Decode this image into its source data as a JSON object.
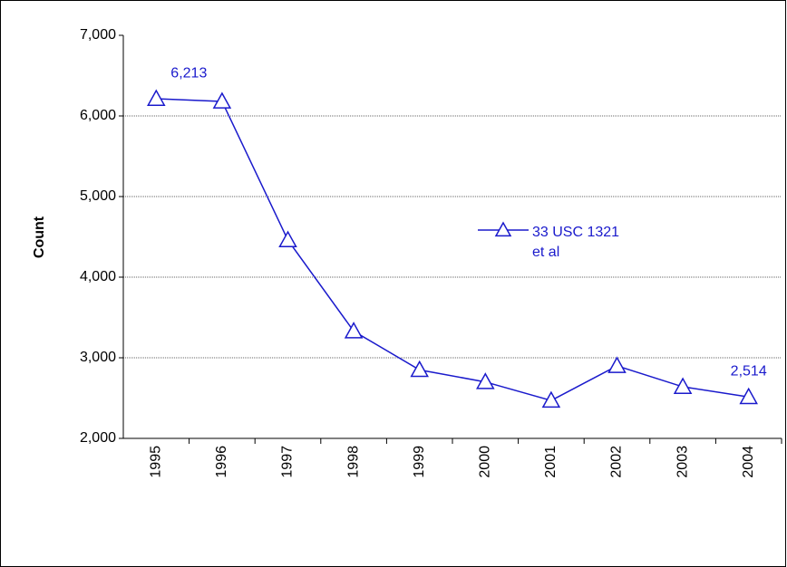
{
  "chart_data": {
    "type": "line",
    "y_label": "Count",
    "categories": [
      "1995",
      "1996",
      "1997",
      "1998",
      "1999",
      "2000",
      "2001",
      "2002",
      "2003",
      "2004"
    ],
    "series": [
      {
        "name": "33 USC 1321 et al",
        "color": "#1a1acc",
        "values": [
          6213,
          6180,
          4460,
          3330,
          2850,
          2700,
          2470,
          2900,
          2640,
          2514
        ],
        "value_labels": [
          "6,213",
          null,
          null,
          null,
          null,
          null,
          null,
          null,
          null,
          "2,514"
        ]
      }
    ],
    "ylim": [
      2000,
      7000
    ],
    "yticks": [
      {
        "value": 2000,
        "label": "2,000"
      },
      {
        "value": 3000,
        "label": "3,000"
      },
      {
        "value": 4000,
        "label": "4,000"
      },
      {
        "value": 5000,
        "label": "5,000"
      },
      {
        "value": 6000,
        "label": "6,000"
      },
      {
        "value": 7000,
        "label": "7,000"
      }
    ],
    "grid": true
  }
}
